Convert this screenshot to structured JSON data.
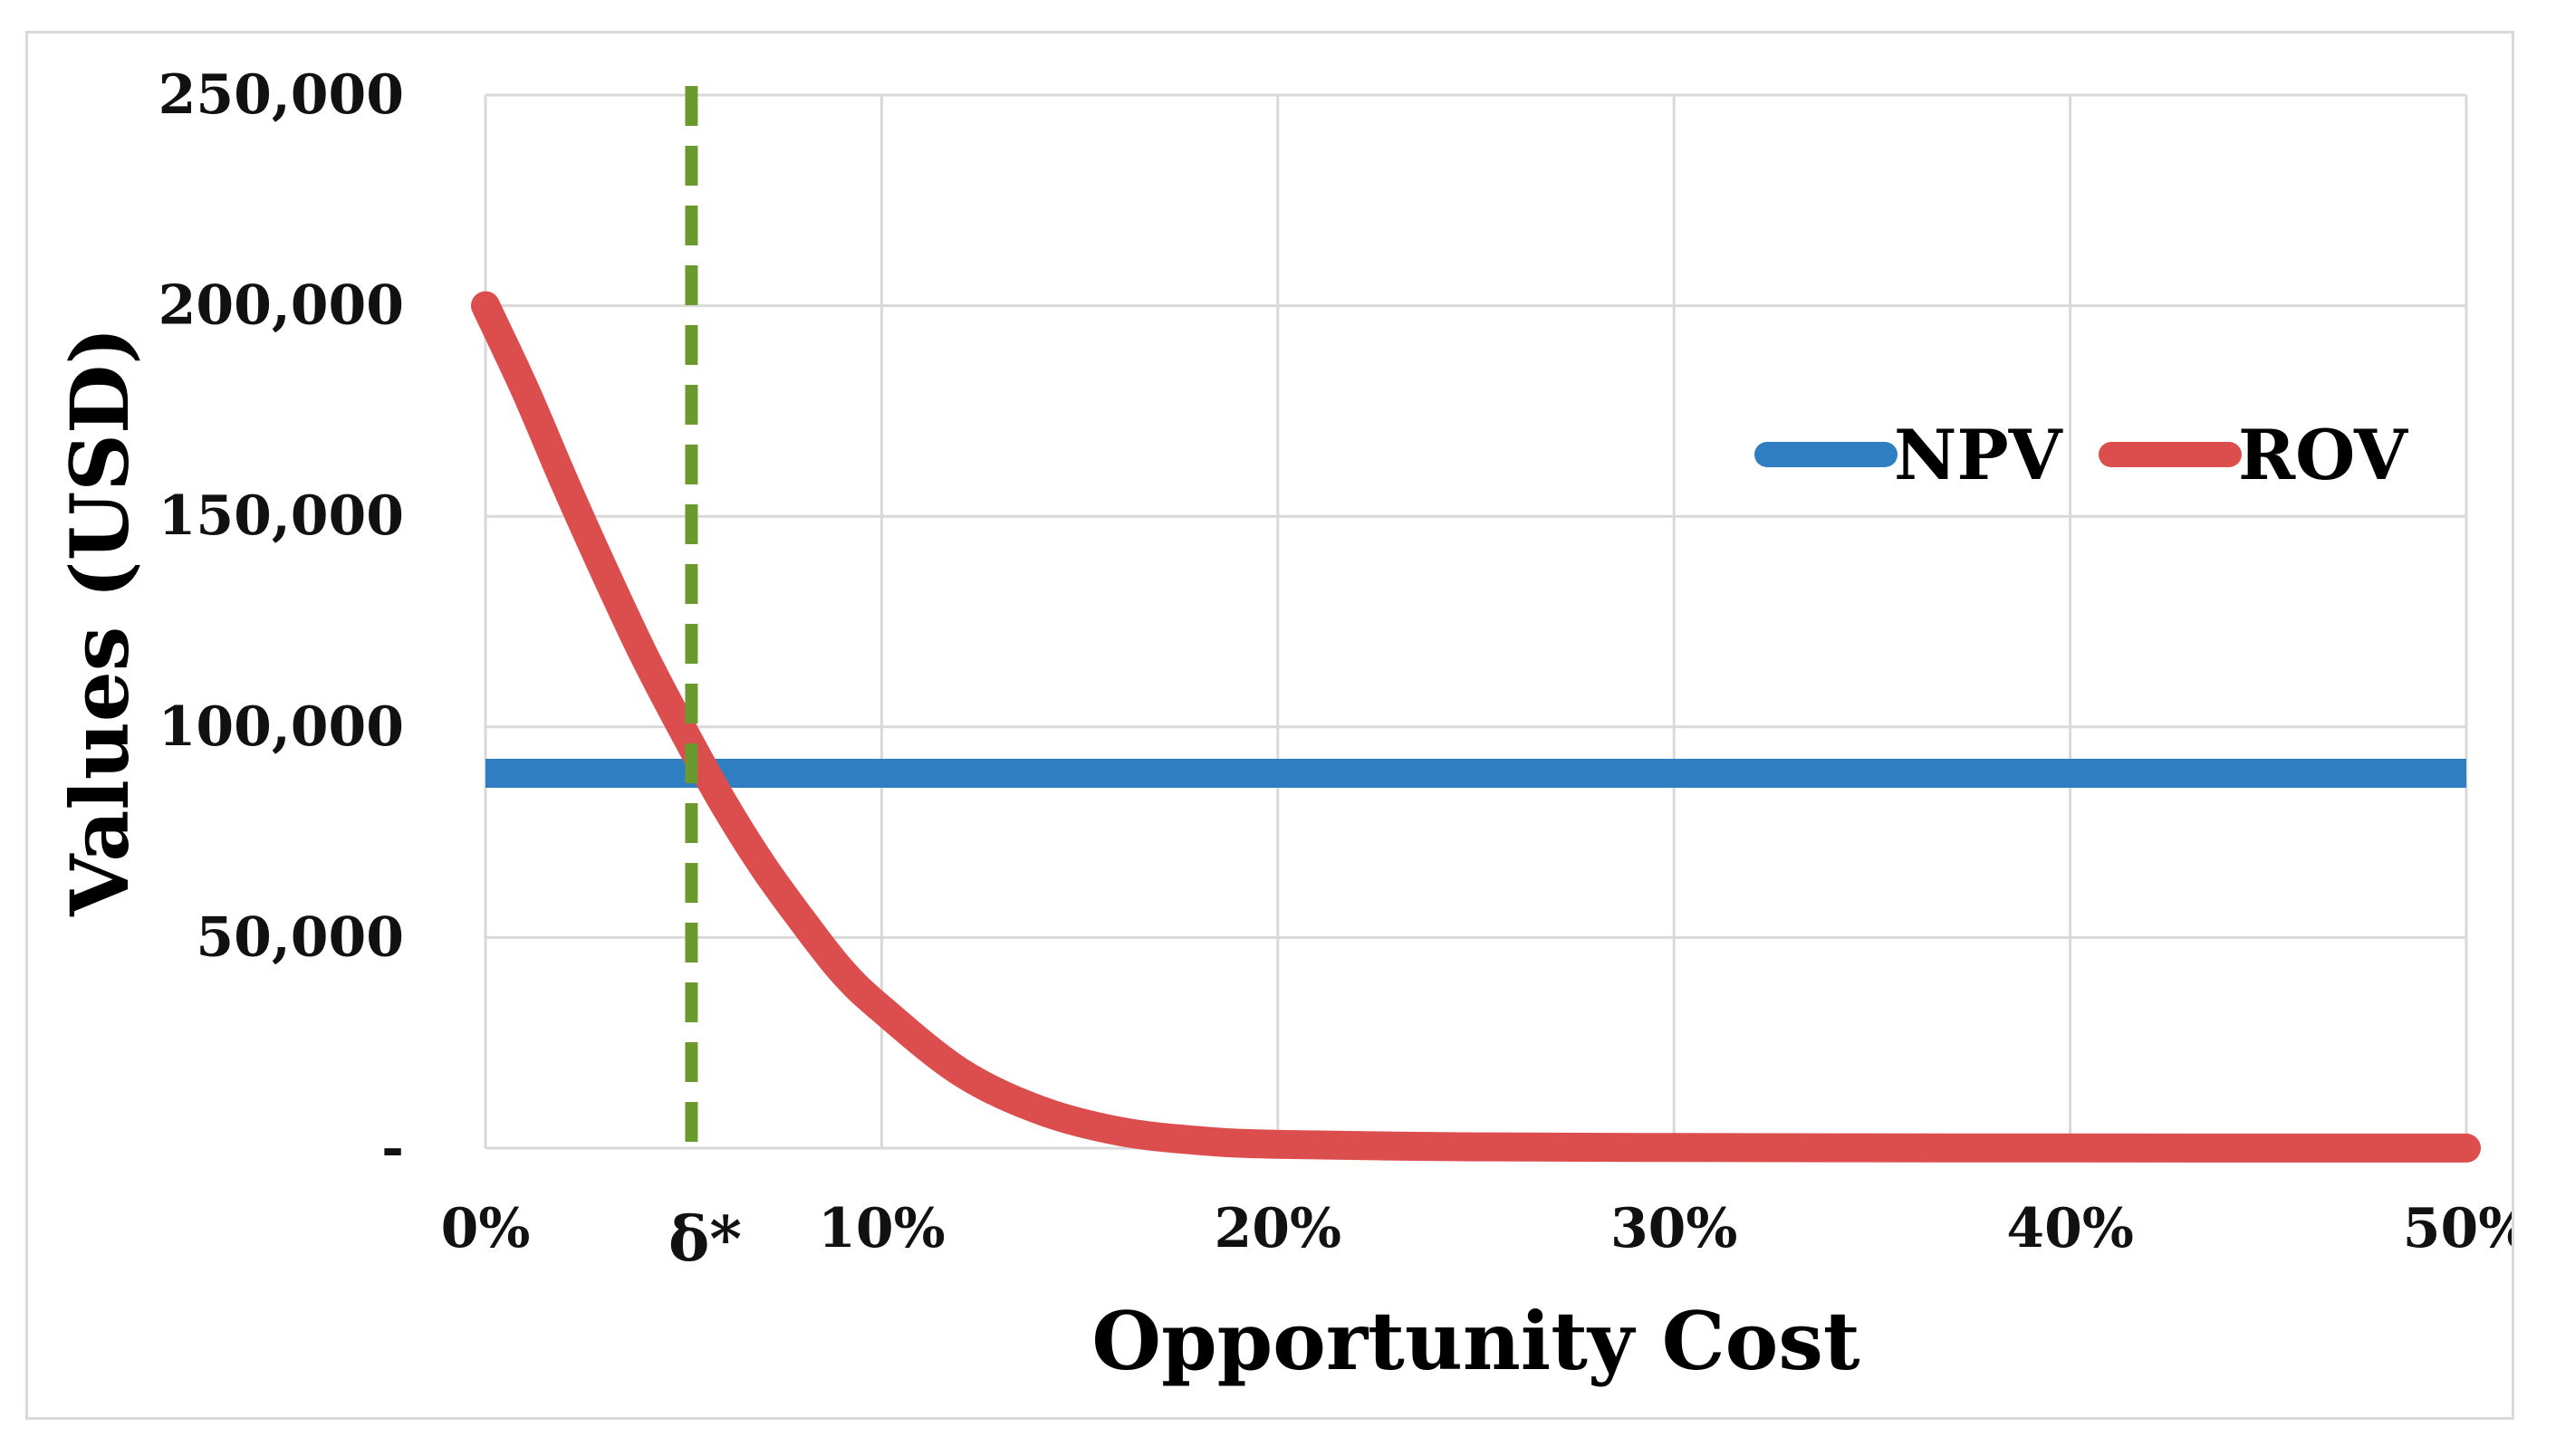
{
  "chart_data": {
    "type": "line",
    "xlabel": "Opportunity Cost",
    "ylabel": "Values (USD)",
    "xlim": [
      0,
      50
    ],
    "ylim": [
      0,
      250000
    ],
    "x_ticks": [
      {
        "value": 0,
        "label": "0%"
      },
      {
        "value": 10,
        "label": "10%"
      },
      {
        "value": 20,
        "label": "20%"
      },
      {
        "value": 30,
        "label": "30%"
      },
      {
        "value": 40,
        "label": "40%"
      },
      {
        "value": 50,
        "label": "50%"
      }
    ],
    "y_ticks": [
      {
        "value": 0,
        "label": "-"
      },
      {
        "value": 50000,
        "label": "50,000"
      },
      {
        "value": 100000,
        "label": "100,000"
      },
      {
        "value": 150000,
        "label": "150,000"
      },
      {
        "value": 200000,
        "label": "200,000"
      },
      {
        "value": 250000,
        "label": "250,000"
      }
    ],
    "grid": true,
    "legend_position": "upper-right",
    "series": [
      {
        "name": "NPV",
        "color": "#2e7ec1",
        "x": [
          0,
          50
        ],
        "y": [
          89000,
          89000
        ]
      },
      {
        "name": "ROV",
        "color": "#dc4e4d",
        "x": [
          0,
          1,
          2,
          3,
          4,
          5,
          6,
          7,
          8,
          9,
          10,
          12,
          14,
          16,
          18,
          20,
          25,
          30,
          35,
          40,
          45,
          50
        ],
        "y": [
          200000,
          180000,
          158000,
          137000,
          117000,
          99000,
          82000,
          67000,
          54000,
          42000,
          33000,
          18000,
          9000,
          4000,
          1800,
          900,
          300,
          150,
          80,
          50,
          30,
          20
        ]
      }
    ],
    "annotations": [
      {
        "type": "vertical-dashed-line",
        "x": 5.2,
        "label": "δ*",
        "color": "#6a9a2e"
      }
    ]
  }
}
